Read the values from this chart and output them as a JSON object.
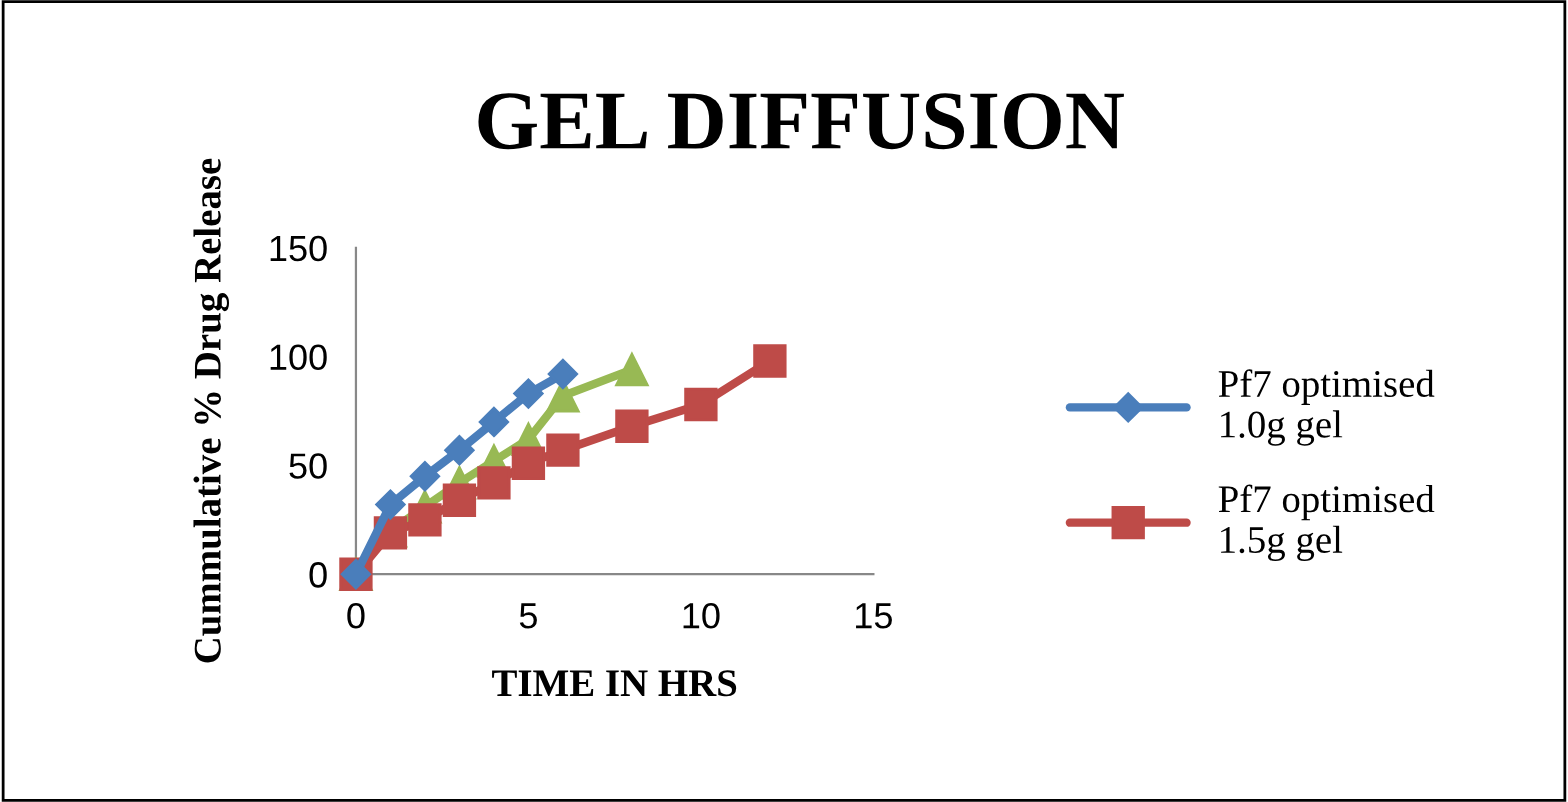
{
  "chart_data": {
    "type": "line",
    "title": "GEL DIFFUSION",
    "xlabel": "TIME IN HRS",
    "ylabel": "Cummulative % Drug Release",
    "xlim": [
      0,
      15
    ],
    "xticks": [
      0,
      5,
      10,
      15
    ],
    "ylim": [
      0,
      150
    ],
    "yticks": [
      0,
      50,
      100,
      150
    ],
    "grid": false,
    "legend": "right",
    "series": [
      {
        "name": "Pf7 optimised 1.0g gel",
        "color": "#4a7ebb",
        "marker": "diamond",
        "x": [
          0,
          1,
          2,
          3,
          4,
          5,
          6
        ],
        "values": [
          0,
          32,
          45,
          57,
          70,
          83,
          92
        ]
      },
      {
        "name": "Pf7 optimised 1.5g gel",
        "color": "#be4b48",
        "marker": "square",
        "x": [
          0,
          1,
          2,
          3,
          4,
          5,
          6,
          8,
          10,
          12
        ],
        "values": [
          0,
          19,
          25,
          34,
          42,
          51,
          57,
          68,
          78,
          98
        ]
      },
      {
        "color": "#98b954",
        "marker": "triangle",
        "x": [
          0,
          1,
          2,
          3,
          4,
          5,
          6,
          8
        ],
        "values": [
          0,
          20,
          31,
          42,
          52,
          62,
          82,
          94
        ]
      }
    ]
  }
}
